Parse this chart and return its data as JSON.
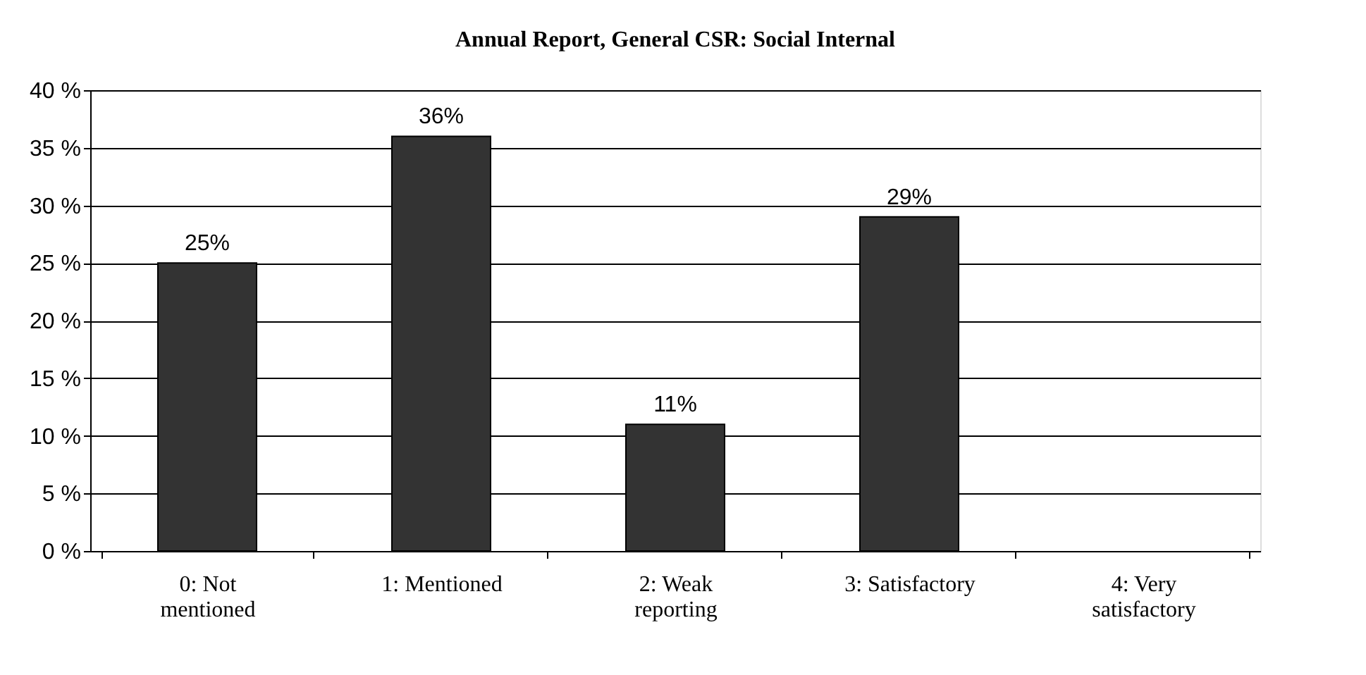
{
  "chart_data": {
    "type": "bar",
    "title": "Annual Report, General CSR: Social Internal",
    "categories": [
      "0: Not mentioned",
      "1: Mentioned",
      "2: Weak reporting",
      "3: Satisfactory",
      "4: Very satisfactory"
    ],
    "values": [
      25,
      36,
      11,
      29,
      null
    ],
    "value_labels": [
      "25%",
      "36%",
      "11%",
      "29%",
      null
    ],
    "color": "#333333",
    "ylim": [
      0,
      40
    ],
    "yticks": [
      {
        "value": 0,
        "label": "0 %"
      },
      {
        "value": 5,
        "label": "5 %"
      },
      {
        "value": 10,
        "label": "10 %"
      },
      {
        "value": 15,
        "label": "15 %"
      },
      {
        "value": 20,
        "label": "20 %"
      },
      {
        "value": 25,
        "label": "25 %"
      },
      {
        "value": 30,
        "label": "30 %"
      },
      {
        "value": 35,
        "label": "35 %"
      },
      {
        "value": 40,
        "label": "40 %"
      }
    ],
    "grid": "y"
  }
}
